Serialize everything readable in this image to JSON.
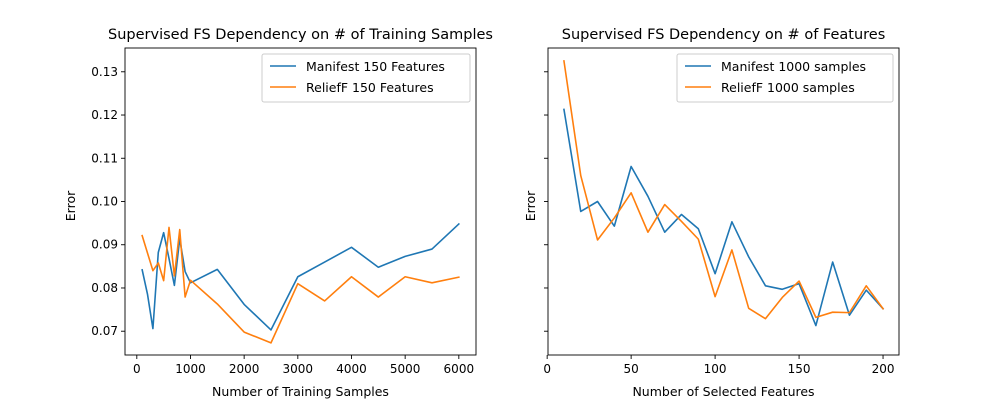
{
  "chart_data": [
    {
      "type": "line",
      "title": "Supervised FS Dependency on # of Training Samples",
      "xlabel": "Number of Training Samples",
      "ylabel": "Error",
      "xlim": [
        -220,
        6320
      ],
      "ylim": [
        0.0645,
        0.1355
      ],
      "xticks": [
        0,
        1000,
        2000,
        3000,
        4000,
        5000,
        6000
      ],
      "xtick_labels": [
        "0",
        "1000",
        "2000",
        "3000",
        "4000",
        "5000",
        "6000"
      ],
      "yticks": [
        0.07,
        0.08,
        0.09,
        0.1,
        0.11,
        0.12,
        0.13
      ],
      "ytick_labels": [
        "0.07",
        "0.08",
        "0.09",
        "0.10",
        "0.11",
        "0.12",
        "0.13"
      ],
      "show_ytick_labels": true,
      "grid": false,
      "legend_position": "upper right",
      "series": [
        {
          "name": "Manifest 150 Features",
          "color": "#1f77b4",
          "x": [
            100,
            200,
            300,
            400,
            500,
            600,
            700,
            800,
            900,
            1000,
            1500,
            2000,
            2500,
            3000,
            3500,
            4000,
            4500,
            5000,
            5500,
            6000
          ],
          "y": [
            0.0842,
            0.0785,
            0.0706,
            0.0882,
            0.0928,
            0.0868,
            0.0806,
            0.0914,
            0.0838,
            0.0812,
            0.0843,
            0.0762,
            0.0703,
            0.0826,
            0.086,
            0.0894,
            0.0848,
            0.0873,
            0.089,
            0.0948
          ]
        },
        {
          "name": "ReliefF 150 Features",
          "color": "#ff7f0e",
          "x": [
            100,
            300,
            400,
            500,
            600,
            700,
            800,
            900,
            1000,
            1500,
            2000,
            2500,
            3000,
            3500,
            4000,
            4500,
            5000,
            5500,
            6000
          ],
          "y": [
            0.0921,
            0.084,
            0.0858,
            0.0817,
            0.094,
            0.0828,
            0.0935,
            0.0779,
            0.0818,
            0.0763,
            0.0698,
            0.0673,
            0.081,
            0.077,
            0.0826,
            0.0779,
            0.0826,
            0.0812,
            0.0825
          ]
        }
      ]
    },
    {
      "type": "line",
      "title": "Supervised FS Dependency on # of Features",
      "xlabel": "Number of Selected Features",
      "ylabel": "Error",
      "xlim": [
        0.5,
        209.5
      ],
      "ylim": [
        0.0645,
        0.1355
      ],
      "xticks": [
        0,
        50,
        100,
        150,
        200
      ],
      "xtick_labels": [
        "0",
        "50",
        "100",
        "150",
        "200"
      ],
      "yticks": [
        0.07,
        0.08,
        0.09,
        0.1,
        0.11,
        0.12,
        0.13
      ],
      "ytick_labels": [],
      "show_ytick_labels": false,
      "grid": false,
      "legend_position": "upper right",
      "series": [
        {
          "name": "Manifest 1000 samples",
          "color": "#1f77b4",
          "x": [
            10,
            20,
            30,
            40,
            50,
            60,
            70,
            80,
            90,
            100,
            110,
            120,
            130,
            140,
            150,
            160,
            170,
            180,
            190,
            200
          ],
          "y": [
            0.1213,
            0.0977,
            0.1,
            0.0943,
            0.1081,
            0.1012,
            0.0929,
            0.097,
            0.0937,
            0.0833,
            0.0953,
            0.0872,
            0.0805,
            0.0797,
            0.081,
            0.0713,
            0.086,
            0.0737,
            0.0795,
            0.0752
          ]
        },
        {
          "name": "ReliefF 1000 samples",
          "color": "#ff7f0e",
          "x": [
            10,
            20,
            30,
            40,
            50,
            60,
            70,
            80,
            90,
            100,
            110,
            120,
            130,
            140,
            150,
            160,
            170,
            180,
            190,
            200
          ],
          "y": [
            0.1325,
            0.106,
            0.0911,
            0.0962,
            0.102,
            0.0929,
            0.0993,
            0.0954,
            0.0913,
            0.078,
            0.0888,
            0.0753,
            0.0729,
            0.0778,
            0.0816,
            0.0732,
            0.0744,
            0.0743,
            0.0805,
            0.0752
          ]
        }
      ]
    }
  ]
}
